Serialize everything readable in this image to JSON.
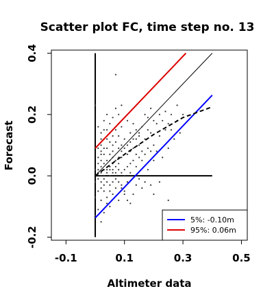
{
  "chart_data": {
    "type": "scatter",
    "title": "Scatter plot FC, time step no. 13",
    "xlabel": "Altimeter data",
    "ylabel": "Forecast",
    "xlim": [
      -0.15,
      0.52
    ],
    "ylim": [
      -0.21,
      0.41
    ],
    "x_ticks": [
      -0.1,
      0.1,
      0.3,
      0.5
    ],
    "x_tick_labels": [
      "-0.1",
      "0.1",
      "0.3",
      "0.5"
    ],
    "y_ticks": [
      -0.2,
      0.0,
      0.2,
      0.4
    ],
    "y_tick_labels": [
      "-0.2",
      "0.0",
      "0.2",
      "0.4"
    ],
    "grid": false,
    "legend_position": "bottom-right",
    "reference_lines": [
      {
        "name": "vertical-zero",
        "x": [
          0.0,
          0.0
        ],
        "y": [
          -0.2,
          0.4
        ],
        "color": "#000000",
        "width": 2
      },
      {
        "name": "horizontal-zero",
        "x": [
          0.0,
          0.4
        ],
        "y": [
          0.0,
          0.0
        ],
        "color": "#000000",
        "width": 2
      },
      {
        "name": "identity",
        "x": [
          0.0,
          0.4
        ],
        "y": [
          0.0,
          0.4
        ],
        "color": "#000000",
        "width": 1
      }
    ],
    "series": [
      {
        "name": "5%: -0.10m",
        "legend_label": "5%:  -0.10m",
        "kind": "line",
        "color": "#0000ff",
        "x": [
          0.0,
          0.4
        ],
        "y": [
          -0.137,
          0.263
        ]
      },
      {
        "name": "95%:  0.06m",
        "legend_label": "95%:  0.06m",
        "kind": "line",
        "color": "#dd0000",
        "x": [
          0.0,
          0.31
        ],
        "y": [
          0.09,
          0.4
        ]
      },
      {
        "kind": "dashed",
        "color": "#000000",
        "x": [
          0.0,
          0.1,
          0.2,
          0.3,
          0.4
        ],
        "y": [
          0.0,
          0.07,
          0.135,
          0.19,
          0.225
        ]
      }
    ],
    "scatter_points": {
      "color": "#333333",
      "points": [
        [
          0.02,
          0.01
        ],
        [
          0.03,
          -0.01
        ],
        [
          0.01,
          0.02
        ],
        [
          0.04,
          0.02
        ],
        [
          0.05,
          0.03
        ],
        [
          0.02,
          -0.02
        ],
        [
          0.06,
          0.04
        ],
        [
          0.03,
          0.04
        ],
        [
          0.01,
          -0.01
        ],
        [
          0.07,
          0.05
        ],
        [
          0.08,
          0.04
        ],
        [
          0.02,
          0.05
        ],
        [
          0.04,
          -0.02
        ],
        [
          0.05,
          0.0
        ],
        [
          0.06,
          0.06
        ],
        [
          0.09,
          0.06
        ],
        [
          0.03,
          0.07
        ],
        [
          0.01,
          0.04
        ],
        [
          0.02,
          0.08
        ],
        [
          0.04,
          0.09
        ],
        [
          0.05,
          0.07
        ],
        [
          0.06,
          0.1
        ],
        [
          0.03,
          0.12
        ],
        [
          0.02,
          0.14
        ],
        [
          0.04,
          0.15
        ],
        [
          0.05,
          0.17
        ],
        [
          0.03,
          0.18
        ],
        [
          0.06,
          0.19
        ],
        [
          0.08,
          0.2
        ],
        [
          0.07,
          0.22
        ],
        [
          0.09,
          0.23
        ],
        [
          0.01,
          0.16
        ],
        [
          0.0,
          0.23
        ],
        [
          0.07,
          0.33
        ],
        [
          0.02,
          -0.04
        ],
        [
          0.03,
          -0.05
        ],
        [
          0.05,
          -0.03
        ],
        [
          0.07,
          -0.04
        ],
        [
          0.06,
          -0.06
        ],
        [
          0.04,
          -0.07
        ],
        [
          0.02,
          -0.08
        ],
        [
          0.08,
          -0.08
        ],
        [
          0.1,
          -0.06
        ],
        [
          0.12,
          -0.09
        ],
        [
          0.13,
          -0.06
        ],
        [
          0.09,
          -0.03
        ],
        [
          0.11,
          -0.02
        ],
        [
          0.14,
          -0.03
        ],
        [
          0.15,
          -0.01
        ],
        [
          0.16,
          -0.04
        ],
        [
          0.17,
          -0.02
        ],
        [
          0.19,
          -0.03
        ],
        [
          0.2,
          -0.06
        ],
        [
          0.22,
          -0.02
        ],
        [
          0.25,
          -0.08
        ],
        [
          0.01,
          -0.11
        ],
        [
          0.02,
          -0.15
        ],
        [
          0.0,
          -0.13
        ],
        [
          0.03,
          -0.12
        ],
        [
          0.1,
          0.02
        ],
        [
          0.12,
          0.04
        ],
        [
          0.14,
          0.03
        ],
        [
          0.16,
          0.05
        ],
        [
          0.18,
          0.02
        ],
        [
          0.11,
          0.07
        ],
        [
          0.13,
          0.09
        ],
        [
          0.15,
          0.1
        ],
        [
          0.17,
          0.12
        ],
        [
          0.19,
          0.14
        ],
        [
          0.2,
          0.1
        ],
        [
          0.22,
          0.13
        ],
        [
          0.24,
          0.15
        ],
        [
          0.16,
          0.16
        ],
        [
          0.14,
          0.12
        ],
        [
          0.18,
          0.19
        ],
        [
          0.2,
          0.18
        ],
        [
          0.22,
          0.2
        ],
        [
          0.24,
          0.21
        ],
        [
          0.26,
          0.2
        ],
        [
          0.28,
          0.23
        ],
        [
          0.1,
          0.12
        ],
        [
          0.12,
          0.14
        ],
        [
          0.09,
          0.1
        ],
        [
          0.08,
          0.13
        ],
        [
          0.07,
          0.11
        ],
        [
          0.06,
          0.13
        ],
        [
          0.05,
          0.11
        ],
        [
          0.04,
          0.05
        ],
        [
          0.03,
          0.02
        ],
        [
          0.02,
          0.03
        ],
        [
          0.01,
          0.01
        ],
        [
          0.0,
          0.02
        ],
        [
          0.0,
          -0.02
        ],
        [
          0.01,
          0.06
        ],
        [
          0.02,
          0.1
        ],
        [
          0.03,
          0.09
        ],
        [
          0.05,
          0.05
        ],
        [
          0.06,
          0.02
        ],
        [
          0.07,
          0.01
        ],
        [
          0.08,
          0.02
        ],
        [
          0.09,
          0.01
        ],
        [
          0.1,
          0.0
        ],
        [
          0.11,
          0.03
        ],
        [
          0.12,
          0.01
        ],
        [
          0.13,
          0.05
        ],
        [
          0.14,
          0.07
        ],
        [
          0.15,
          0.06
        ],
        [
          0.16,
          0.08
        ],
        [
          0.17,
          0.07
        ],
        [
          0.18,
          0.09
        ],
        [
          0.19,
          0.08
        ],
        [
          0.2,
          0.05
        ],
        [
          0.21,
          0.08
        ],
        [
          0.23,
          0.06
        ],
        [
          0.25,
          0.09
        ],
        [
          0.27,
          0.12
        ],
        [
          0.29,
          0.14
        ],
        [
          0.18,
          0.15
        ],
        [
          0.15,
          0.14
        ],
        [
          0.12,
          0.11
        ],
        [
          0.08,
          0.09
        ],
        [
          0.06,
          0.08
        ],
        [
          0.04,
          0.12
        ],
        [
          0.02,
          0.12
        ],
        [
          0.03,
          0.15
        ],
        [
          0.04,
          0.2
        ],
        [
          0.05,
          0.14
        ],
        [
          0.09,
          0.16
        ],
        [
          0.11,
          0.18
        ],
        [
          0.13,
          0.17
        ],
        [
          0.08,
          0.17
        ],
        [
          0.07,
          0.15
        ],
        [
          0.01,
          0.09
        ],
        [
          0.02,
          0.07
        ],
        [
          0.03,
          -0.03
        ],
        [
          0.05,
          -0.05
        ],
        [
          0.06,
          -0.02
        ],
        [
          0.07,
          -0.01
        ],
        [
          0.08,
          -0.02
        ],
        [
          0.09,
          -0.04
        ],
        [
          0.1,
          -0.05
        ],
        [
          0.11,
          -0.08
        ],
        [
          0.04,
          -0.09
        ],
        [
          0.05,
          -0.1
        ],
        [
          0.01,
          -0.05
        ],
        [
          0.0,
          -0.07
        ],
        [
          0.02,
          0.0
        ],
        [
          0.03,
          0.0
        ],
        [
          0.04,
          0.01
        ],
        [
          0.05,
          0.02
        ],
        [
          0.06,
          0.01
        ],
        [
          0.07,
          0.03
        ],
        [
          0.08,
          0.06
        ],
        [
          0.09,
          0.08
        ],
        [
          0.1,
          0.09
        ],
        [
          0.11,
          0.1
        ],
        [
          0.12,
          0.08
        ],
        [
          0.13,
          0.12
        ],
        [
          0.14,
          0.15
        ],
        [
          0.15,
          0.13
        ],
        [
          0.21,
          0.17
        ],
        [
          0.23,
          0.18
        ],
        [
          0.25,
          0.17
        ],
        [
          0.26,
          0.15
        ],
        [
          0.28,
          0.18
        ],
        [
          0.3,
          0.2
        ],
        [
          0.19,
          0.22
        ],
        [
          0.17,
          0.2
        ]
      ]
    },
    "legend": [
      {
        "label": "5%:  -0.10m",
        "color": "#0000ff"
      },
      {
        "label": "95%:  0.06m",
        "color": "#dd0000"
      }
    ]
  }
}
